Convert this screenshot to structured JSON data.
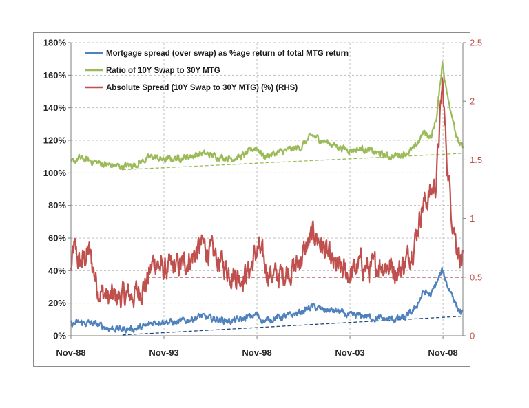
{
  "chart_data": {
    "type": "line",
    "title": "",
    "xlabel": "",
    "ylabel": "",
    "y2label": "",
    "x_tick_labels": [
      "Nov-88",
      "Nov-93",
      "Nov-98",
      "Nov-03",
      "Nov-08"
    ],
    "x_tick_years": [
      1988.83,
      1993.83,
      1998.83,
      2003.83,
      2008.83
    ],
    "x_range": [
      1988.83,
      2009.9
    ],
    "y_left": {
      "ylim": [
        0,
        180
      ],
      "ticks": [
        0,
        20,
        40,
        60,
        80,
        100,
        120,
        140,
        160,
        180
      ],
      "tick_labels": [
        "0%",
        "20%",
        "40%",
        "60%",
        "80%",
        "100%",
        "120%",
        "140%",
        "160%",
        "180%"
      ]
    },
    "y_right": {
      "ylim": [
        0,
        2.5
      ],
      "ticks": [
        0,
        0.5,
        1,
        1.5,
        2,
        2.5
      ],
      "tick_labels": [
        "0",
        "0.5",
        "1",
        "1.5",
        "2",
        "2.5"
      ]
    },
    "grid": true,
    "legend_position": "top-left",
    "series": [
      {
        "name": "Mortgage spread (over swap) as %age return of total MTG return",
        "axis": "left",
        "color": "#4f81bd",
        "noise": 1.6,
        "points": [
          [
            1988.83,
            7
          ],
          [
            1989.3,
            8
          ],
          [
            1990.0,
            7.5
          ],
          [
            1990.8,
            5
          ],
          [
            1991.5,
            4
          ],
          [
            1992.3,
            4.5
          ],
          [
            1992.8,
            5.5
          ],
          [
            1993.2,
            8
          ],
          [
            1993.8,
            9
          ],
          [
            1994.5,
            8
          ],
          [
            1995.2,
            10
          ],
          [
            1995.8,
            12
          ],
          [
            1996.3,
            10.5
          ],
          [
            1996.8,
            10
          ],
          [
            1997.4,
            9
          ],
          [
            1998.0,
            10
          ],
          [
            1998.8,
            13
          ],
          [
            1999.2,
            9
          ],
          [
            1999.8,
            11
          ],
          [
            2000.5,
            12
          ],
          [
            2001.2,
            14.5
          ],
          [
            2001.8,
            18
          ],
          [
            2002.3,
            16
          ],
          [
            2002.8,
            15.5
          ],
          [
            2003.2,
            15
          ],
          [
            2003.8,
            12
          ],
          [
            2004.5,
            12.5
          ],
          [
            2005.3,
            10.5
          ],
          [
            2006.0,
            10
          ],
          [
            2006.8,
            11
          ],
          [
            2007.3,
            16
          ],
          [
            2007.8,
            27
          ],
          [
            2008.2,
            25
          ],
          [
            2008.5,
            33
          ],
          [
            2008.8,
            40
          ],
          [
            2009.1,
            30
          ],
          [
            2009.35,
            25
          ],
          [
            2009.6,
            17
          ],
          [
            2009.9,
            13
          ]
        ]
      },
      {
        "name": "Ratio of 10Y Swap to 30Y MTG",
        "axis": "left",
        "color": "#9bbb59",
        "noise": 1.6,
        "points": [
          [
            1988.83,
            106
          ],
          [
            1989.3,
            109
          ],
          [
            1990.0,
            107
          ],
          [
            1990.8,
            105
          ],
          [
            1991.5,
            104
          ],
          [
            1992.3,
            105
          ],
          [
            1992.8,
            108
          ],
          [
            1993.2,
            110
          ],
          [
            1993.8,
            108
          ],
          [
            1994.5,
            109
          ],
          [
            1995.2,
            110
          ],
          [
            1995.8,
            112
          ],
          [
            1996.3,
            111
          ],
          [
            1996.8,
            110
          ],
          [
            1997.4,
            109
          ],
          [
            1998.0,
            110
          ],
          [
            1998.8,
            116
          ],
          [
            1999.2,
            110
          ],
          [
            1999.8,
            112
          ],
          [
            2000.5,
            114
          ],
          [
            2001.2,
            116
          ],
          [
            2001.8,
            123
          ],
          [
            2002.3,
            120
          ],
          [
            2002.8,
            118
          ],
          [
            2003.2,
            116
          ],
          [
            2003.8,
            114
          ],
          [
            2004.5,
            115
          ],
          [
            2005.3,
            112
          ],
          [
            2006.0,
            110
          ],
          [
            2006.8,
            112
          ],
          [
            2007.3,
            115
          ],
          [
            2007.8,
            125
          ],
          [
            2008.2,
            122
          ],
          [
            2008.5,
            135
          ],
          [
            2008.8,
            168
          ],
          [
            2009.1,
            145
          ],
          [
            2009.35,
            135
          ],
          [
            2009.6,
            120
          ],
          [
            2009.9,
            115
          ]
        ]
      },
      {
        "name": "Absolute Spread (10Y Swap to 30Y MTG) (%) (RHS)",
        "axis": "right",
        "color": "#c0504d",
        "noise": 0.085,
        "points": [
          [
            1988.83,
            0.55
          ],
          [
            1989.0,
            0.75
          ],
          [
            1989.3,
            0.6
          ],
          [
            1989.8,
            0.72
          ],
          [
            1990.3,
            0.4
          ],
          [
            1990.8,
            0.32
          ],
          [
            1991.5,
            0.33
          ],
          [
            1992.2,
            0.35
          ],
          [
            1992.9,
            0.45
          ],
          [
            1993.3,
            0.65
          ],
          [
            1993.8,
            0.55
          ],
          [
            1994.3,
            0.58
          ],
          [
            1994.8,
            0.6
          ],
          [
            1995.4,
            0.68
          ],
          [
            1995.9,
            0.78
          ],
          [
            1996.4,
            0.7
          ],
          [
            1996.9,
            0.62
          ],
          [
            1997.4,
            0.55
          ],
          [
            1997.9,
            0.5
          ],
          [
            1998.4,
            0.55
          ],
          [
            1998.9,
            0.75
          ],
          [
            1999.4,
            0.55
          ],
          [
            1999.9,
            0.5
          ],
          [
            2000.4,
            0.55
          ],
          [
            2000.9,
            0.58
          ],
          [
            2001.4,
            0.72
          ],
          [
            2001.9,
            0.88
          ],
          [
            2002.4,
            0.75
          ],
          [
            2002.9,
            0.6
          ],
          [
            2003.4,
            0.55
          ],
          [
            2003.9,
            0.52
          ],
          [
            2004.4,
            0.62
          ],
          [
            2004.9,
            0.55
          ],
          [
            2005.4,
            0.62
          ],
          [
            2005.9,
            0.6
          ],
          [
            2006.4,
            0.55
          ],
          [
            2006.9,
            0.65
          ],
          [
            2007.3,
            0.8
          ],
          [
            2007.7,
            1.1
          ],
          [
            2008.1,
            1.2
          ],
          [
            2008.45,
            1.3
          ],
          [
            2008.8,
            2.15
          ],
          [
            2009.05,
            1.5
          ],
          [
            2009.3,
            1.05
          ],
          [
            2009.55,
            0.8
          ],
          [
            2009.9,
            0.6
          ]
        ]
      }
    ],
    "trend_lines": [
      {
        "of": "Mortgage spread (over swap) as %age return of total MTG return",
        "axis": "left",
        "color": "#1f497d",
        "x": [
          1991.6,
          2009.9
        ],
        "y": [
          0.5,
          12
        ]
      },
      {
        "of": "Ratio of 10Y Swap to 30Y MTG",
        "axis": "left",
        "color": "#9bbb59",
        "x": [
          1991.6,
          2009.9
        ],
        "y": [
          102,
          112
        ]
      },
      {
        "of": "Absolute Spread (10Y Swap to 30Y MTG) (%) (RHS)",
        "axis": "right",
        "color": "#8b1c1c",
        "x": [
          1992.9,
          2009.9
        ],
        "y": [
          0.5,
          0.5
        ]
      }
    ]
  }
}
